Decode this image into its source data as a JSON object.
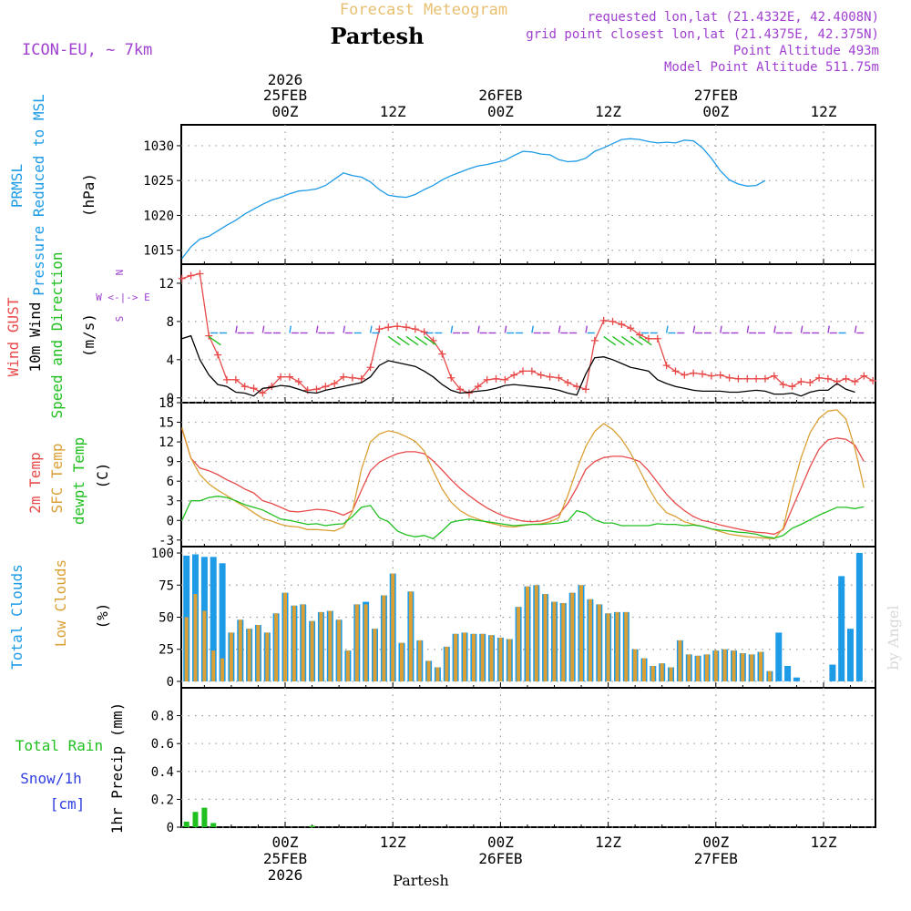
{
  "header": {
    "subtitle": "Forecast Meteogram",
    "title": "Partesh",
    "model": "ICON-EU, ~ 7km",
    "requested": "requested lon,lat (21.4332E, 42.4008N)",
    "grid": "grid point closest lon,lat (21.4375E, 42.375N)",
    "point_alt": "Point Altitude 493m",
    "model_alt": "Model Point Altitude 511.75m",
    "watermark": "by Angel",
    "footer": "Partesh",
    "colors": {
      "subtitle": "#e8c070",
      "info": "#a040d0",
      "blue": "#1e9be6",
      "orange": "#dba035",
      "red": "#e84a4a",
      "green": "#20c020",
      "snow": "#3040e0"
    }
  },
  "time_axis": {
    "top": {
      "year": "2026",
      "labels": [
        {
          "h": 0,
          "lines": [
            "25FEB",
            "00Z"
          ]
        },
        {
          "h": 12,
          "lines": [
            "12Z"
          ]
        },
        {
          "h": 24,
          "lines": [
            "26FEB",
            "00Z"
          ]
        },
        {
          "h": 36,
          "lines": [
            "12Z"
          ]
        },
        {
          "h": 48,
          "lines": [
            "27FEB",
            "00Z"
          ]
        },
        {
          "h": 60,
          "lines": [
            "12Z"
          ]
        }
      ]
    },
    "bottom": {
      "labels": [
        {
          "h": 0,
          "lines": [
            "00Z",
            "25FEB",
            "2026"
          ]
        },
        {
          "h": 12,
          "lines": [
            "12Z"
          ]
        },
        {
          "h": 24,
          "lines": [
            "00Z",
            "26FEB"
          ]
        },
        {
          "h": 36,
          "lines": [
            "12Z"
          ]
        },
        {
          "h": 48,
          "lines": [
            "00Z",
            "27FEB"
          ]
        },
        {
          "h": 60,
          "lines": [
            "12Z"
          ]
        }
      ]
    }
  },
  "chart_data": [
    {
      "type": "line",
      "panel": "pressure",
      "labels": {
        "l1": "PRMSL",
        "l2": "Pressure Reduced to MSL",
        "unit": "(hPa)"
      },
      "ylim": [
        1013,
        1033
      ],
      "yticks": [
        1015,
        1020,
        1025,
        1030
      ],
      "x_hours_from": -11.5,
      "series": [
        {
          "name": "PRMSL",
          "color": "#1e9be6",
          "values": [
            1013.8,
            1015.5,
            1016.6,
            1017.0,
            1017.8,
            1018.6,
            1019.3,
            1020.2,
            1020.9,
            1021.6,
            1022.2,
            1022.6,
            1023.1,
            1023.5,
            1023.6,
            1023.8,
            1024.3,
            1025.2,
            1026.1,
            1025.7,
            1025.5,
            1024.8,
            1023.7,
            1022.9,
            1022.7,
            1022.6,
            1023.0,
            1023.7,
            1024.3,
            1025.1,
            1025.7,
            1026.2,
            1026.7,
            1027.1,
            1027.3,
            1027.6,
            1027.9,
            1028.6,
            1029.2,
            1029.1,
            1028.8,
            1028.7,
            1028.0,
            1027.7,
            1027.8,
            1028.2,
            1029.2,
            1029.7,
            1030.3,
            1030.9,
            1031.0,
            1030.9,
            1030.6,
            1030.4,
            1030.5,
            1030.4,
            1030.8,
            1030.7,
            1029.7,
            1028.2,
            1026.4,
            1025.1,
            1024.5,
            1024.2,
            1024.3,
            1025.0
          ]
        }
      ]
    },
    {
      "type": "line",
      "panel": "wind",
      "labels": {
        "l1": "Wind GUST",
        "l2": "10m Wind",
        "l3": "Speed and Direction",
        "unit": "(m/s)",
        "compass": [
          "N",
          "W <-|-> E",
          "S"
        ]
      },
      "ylim": [
        -0.5,
        14
      ],
      "yticks": [
        0,
        4,
        8,
        12
      ],
      "x_hours_from": -11.5,
      "series": [
        {
          "name": "Wind GUST",
          "color": "#e84a4a",
          "values": [
            12.5,
            12.8,
            13.0,
            6.5,
            4.5,
            1.9,
            1.9,
            1.2,
            1.0,
            0.5,
            1.2,
            2.2,
            2.2,
            1.7,
            0.8,
            0.9,
            1.2,
            1.5,
            2.2,
            2.1,
            2.0,
            3.2,
            7.2,
            7.4,
            7.5,
            7.4,
            7.2,
            6.9,
            6.0,
            4.6,
            2.1,
            0.9,
            0.5,
            1.2,
            1.9,
            2.0,
            1.9,
            2.4,
            2.8,
            2.8,
            2.4,
            2.2,
            2.1,
            1.6,
            1.2,
            0.9,
            6.0,
            8.1,
            8.0,
            7.7,
            7.3,
            6.6,
            6.2,
            6.2,
            3.4,
            2.8,
            2.4,
            2.6,
            2.5,
            2.3,
            2.4,
            2.1,
            2.0,
            2.0,
            2.0,
            2.0,
            2.3,
            1.4,
            1.2,
            1.7,
            1.6,
            2.1,
            2.0,
            1.7,
            2.0,
            1.7,
            2.3,
            1.8
          ]
        },
        {
          "name": "10m Wind",
          "color": "#000000",
          "values": [
            6.2,
            6.5,
            4.0,
            2.4,
            1.4,
            1.2,
            0.6,
            0.5,
            0.2,
            1.0,
            1.1,
            1.3,
            1.2,
            0.9,
            0.6,
            0.5,
            0.8,
            1.0,
            1.2,
            1.4,
            1.6,
            2.2,
            3.4,
            3.9,
            3.7,
            3.5,
            3.3,
            2.8,
            2.2,
            1.4,
            0.8,
            0.5,
            0.6,
            0.7,
            0.8,
            1.0,
            1.3,
            1.4,
            1.3,
            1.2,
            1.1,
            1.0,
            0.8,
            0.5,
            0.3,
            2.5,
            4.2,
            4.3,
            4.0,
            3.6,
            3.2,
            3.0,
            2.8,
            1.9,
            1.5,
            1.2,
            1.0,
            0.8,
            0.7,
            0.7,
            0.7,
            0.6,
            0.6,
            0.7,
            0.8,
            0.7,
            0.4,
            0.4,
            0.5,
            0.2,
            0.6,
            0.8,
            0.8,
            1.5,
            0.9,
            0.6
          ]
        }
      ],
      "arrow_colors": [
        "#20c020",
        "#1e9be6",
        "#a040d0"
      ]
    },
    {
      "type": "line",
      "panel": "temperature",
      "labels": {
        "l1": "2m Temp",
        "l2": "SFC Temp",
        "l3": "dewpt Temp",
        "unit": "(C)"
      },
      "ylim": [
        -4,
        18
      ],
      "yticks": [
        -3,
        0,
        3,
        6,
        9,
        12,
        15,
        18
      ],
      "x_hours_from": -11.5,
      "series": [
        {
          "name": "2m Temp",
          "color": "#e84a4a",
          "values": [
            14.0,
            9.5,
            8.0,
            7.6,
            7.0,
            6.2,
            5.6,
            4.8,
            4.2,
            3.0,
            2.6,
            2.0,
            1.4,
            1.3,
            1.5,
            1.7,
            1.6,
            1.3,
            0.8,
            1.5,
            4.6,
            7.6,
            8.9,
            9.6,
            10.2,
            10.5,
            10.5,
            10.2,
            9.1,
            7.7,
            6.2,
            4.9,
            3.8,
            2.8,
            1.9,
            1.2,
            0.6,
            0.2,
            -0.1,
            -0.2,
            -0.1,
            0.3,
            0.9,
            2.6,
            5.0,
            7.8,
            9.0,
            9.6,
            9.8,
            9.8,
            9.5,
            9.0,
            7.6,
            5.8,
            4.0,
            2.6,
            1.5,
            0.6,
            0.0,
            -0.3,
            -0.7,
            -1.0,
            -1.3,
            -1.6,
            -1.8,
            -1.9,
            -2.1,
            -1.4,
            1.8,
            5.0,
            8.2,
            10.9,
            12.3,
            12.6,
            12.4,
            11.5,
            9.0
          ]
        },
        {
          "name": "SFC Temp",
          "color": "#dba035",
          "values": [
            14.2,
            9.5,
            7.0,
            5.6,
            4.6,
            3.8,
            2.9,
            2.1,
            1.2,
            0.3,
            -0.1,
            -0.6,
            -0.9,
            -1.0,
            -1.4,
            -1.4,
            -1.5,
            -1.6,
            -1.0,
            1.4,
            7.8,
            12.0,
            13.2,
            13.7,
            13.4,
            12.8,
            12.1,
            10.6,
            7.6,
            4.8,
            2.8,
            1.5,
            0.7,
            0.2,
            -0.3,
            -0.6,
            -0.9,
            -1.0,
            -0.8,
            -0.6,
            -0.5,
            -0.2,
            0.4,
            3.8,
            7.8,
            11.3,
            13.6,
            14.8,
            13.9,
            12.4,
            10.3,
            7.7,
            5.0,
            2.7,
            1.2,
            0.6,
            -0.2,
            -0.6,
            -0.9,
            -1.3,
            -1.7,
            -2.1,
            -2.3,
            -2.5,
            -2.6,
            -2.7,
            -2.8,
            -1.2,
            4.6,
            9.6,
            13.4,
            15.6,
            16.7,
            16.9,
            15.5,
            11.0,
            5.0
          ]
        },
        {
          "name": "dewpt Temp",
          "color": "#20c020",
          "values": [
            0.0,
            3.0,
            3.0,
            3.5,
            3.7,
            3.5,
            3.0,
            2.4,
            2.0,
            1.6,
            0.9,
            0.2,
            0.0,
            -0.3,
            -0.6,
            -0.5,
            -0.8,
            -0.6,
            -0.5,
            0.6,
            2.0,
            2.3,
            0.4,
            -0.2,
            -1.6,
            -2.2,
            -2.5,
            -2.3,
            -2.8,
            -1.6,
            -0.3,
            0.0,
            0.2,
            0.0,
            -0.2,
            -0.4,
            -0.6,
            -0.8,
            -0.7,
            -0.6,
            -0.6,
            -0.5,
            -0.4,
            -0.1,
            1.5,
            1.1,
            0.1,
            -0.4,
            -0.4,
            -0.8,
            -0.8,
            -0.8,
            -0.8,
            -0.5,
            -0.6,
            -0.6,
            -0.8,
            -0.7,
            -0.9,
            -1.3,
            -1.5,
            -1.6,
            -1.8,
            -1.9,
            -2.1,
            -2.5,
            -2.7,
            -2.3,
            -1.2,
            -0.6,
            0.1,
            0.8,
            1.4,
            2.0,
            2.0,
            1.8,
            2.1
          ]
        }
      ]
    },
    {
      "type": "bar",
      "panel": "clouds",
      "labels": {
        "l1": "Total Clouds",
        "l2": "Low Clouds",
        "unit": "(%)"
      },
      "ylim": [
        -5,
        105
      ],
      "yticks": [
        0,
        25,
        50,
        75,
        100
      ],
      "x_hours_from": -11,
      "series": [
        {
          "name": "Total Clouds",
          "color": "#1e9be6",
          "values": [
            98,
            99,
            97,
            97,
            92,
            38,
            48,
            41,
            44,
            38,
            53,
            69,
            59,
            60,
            47,
            54,
            55,
            48,
            24,
            60,
            62,
            41,
            67,
            84,
            30,
            70,
            32,
            16,
            11,
            27,
            37,
            38,
            37,
            37,
            36,
            34,
            33,
            58,
            74,
            75,
            68,
            62,
            61,
            69,
            75,
            64,
            60,
            53,
            54,
            54,
            25,
            18,
            12,
            14,
            11,
            32,
            21,
            20,
            21,
            24,
            25,
            24,
            22,
            21,
            23,
            8,
            38,
            12,
            3,
            0,
            0,
            0,
            13,
            82,
            41,
            100
          ]
        },
        {
          "name": "Low Clouds",
          "color": "#dba035",
          "values": [
            50,
            68,
            55,
            24,
            18,
            38,
            48,
            41,
            44,
            38,
            53,
            69,
            59,
            60,
            47,
            54,
            55,
            48,
            24,
            60,
            60,
            41,
            67,
            84,
            30,
            70,
            32,
            16,
            11,
            27,
            37,
            38,
            37,
            37,
            36,
            34,
            33,
            58,
            74,
            75,
            68,
            62,
            61,
            69,
            75,
            64,
            60,
            53,
            54,
            54,
            25,
            18,
            12,
            14,
            11,
            32,
            21,
            20,
            21,
            24,
            25,
            24,
            22,
            21,
            23,
            8,
            0,
            0,
            0,
            0,
            0,
            0,
            0,
            0,
            0,
            0
          ]
        }
      ]
    },
    {
      "type": "bar",
      "panel": "precip",
      "labels": {
        "rain": "Total  Rain",
        "snow": "Snow/1h",
        "cm": "[cm]",
        "unit": "1hr Precip (mm)"
      },
      "ylim": [
        0,
        1
      ],
      "yticks": [
        0,
        0.2,
        0.4,
        0.6,
        0.8
      ],
      "x_hours_from": -11,
      "series": [
        {
          "name": "Total Rain",
          "color": "#20c020",
          "values": [
            0.04,
            0.11,
            0.14,
            0.03,
            0,
            0,
            0,
            0,
            0,
            0,
            0,
            0,
            0,
            0,
            0.01,
            0,
            0,
            0,
            0,
            0
          ]
        },
        {
          "name": "Snow/1h",
          "color": "#3040e0",
          "values": [
            0,
            0,
            0,
            0,
            0,
            0,
            0,
            0,
            0,
            0,
            0,
            0,
            0,
            0,
            0,
            0,
            0,
            0,
            0,
            0
          ]
        }
      ]
    }
  ]
}
